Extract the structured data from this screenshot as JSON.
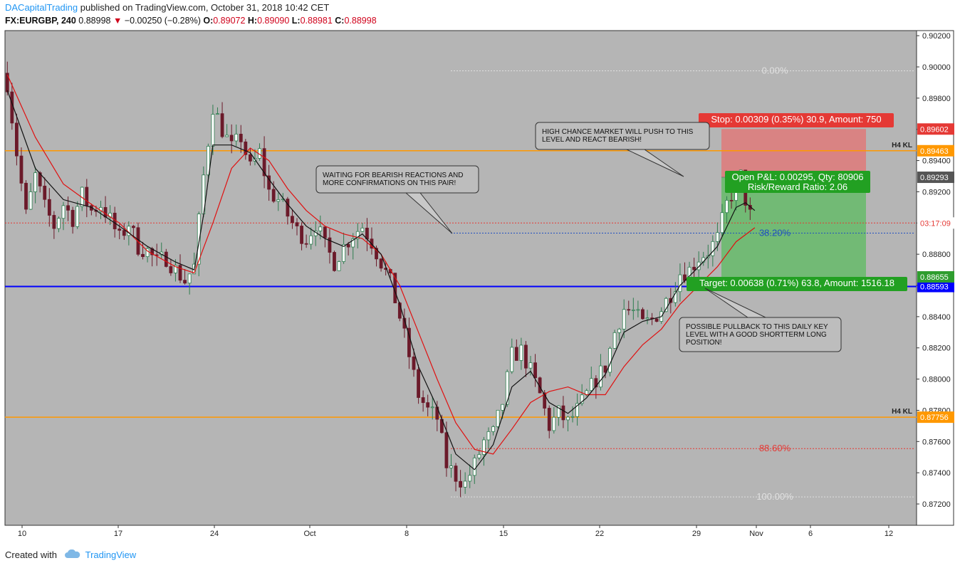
{
  "header": {
    "author": "DACapitalTrading",
    "published": " published on TradingView.com, October 31, 2018 10:42 CET",
    "symbol": "FX:EURGBP, 240",
    "last": "0.88998",
    "change_arrow": "▼",
    "change": "−0.00250 (−0.28%)",
    "o_label": "O:",
    "o": "0.89072",
    "h_label": "H:",
    "h": "0.89090",
    "l_label": "L:",
    "l": "0.88981",
    "c_label": "C:",
    "c": "0.88998"
  },
  "footer": {
    "created": "Created with",
    "logo": "TradingView",
    "logo_icon": "tradingview-cloud-icon"
  },
  "colors": {
    "background": "#b5b5b5",
    "up_candle": "#2e7d50",
    "down_candle": "#6b1a2a",
    "ema_fast": "#111111",
    "ema_slow": "#e01010",
    "orange_level": "#ff9800",
    "blue_level": "#0000ff",
    "stop_zone": "#e57373",
    "target_zone": "#66bb6a"
  },
  "chart_data": {
    "type": "candlestick",
    "symbol": "FX:EURGBP",
    "timeframe": "240",
    "ylim": [
      0.871,
      0.903
    ],
    "y_ticks": [
      "0.90200",
      "0.90000",
      "0.89800",
      "0.89600",
      "0.89400",
      "0.89200",
      "0.89000",
      "0.88800",
      "0.88600",
      "0.88400",
      "0.88200",
      "0.88000",
      "0.87800",
      "0.87600",
      "0.87400",
      "0.87200"
    ],
    "x_ticks": [
      "10",
      "17",
      "24",
      "Oct",
      "8",
      "15",
      "22",
      "29",
      "Nov",
      "6",
      "12"
    ],
    "close_path": [
      [
        0,
        0.899
      ],
      [
        2,
        0.8945
      ],
      [
        4,
        0.8905
      ],
      [
        6,
        0.893
      ],
      [
        8,
        0.891
      ],
      [
        10,
        0.8898
      ],
      [
        12,
        0.8912
      ],
      [
        14,
        0.8903
      ],
      [
        16,
        0.8918
      ],
      [
        18,
        0.8908
      ],
      [
        20,
        0.8912
      ],
      [
        22,
        0.8902
      ],
      [
        24,
        0.889
      ],
      [
        26,
        0.89
      ],
      [
        28,
        0.8885
      ],
      [
        30,
        0.8882
      ],
      [
        32,
        0.8875
      ],
      [
        34,
        0.8878
      ],
      [
        36,
        0.887
      ],
      [
        38,
        0.8863
      ],
      [
        40,
        0.8872
      ],
      [
        42,
        0.893
      ],
      [
        44,
        0.8975
      ],
      [
        46,
        0.896
      ],
      [
        48,
        0.8948
      ],
      [
        50,
        0.8955
      ],
      [
        52,
        0.8935
      ],
      [
        54,
        0.8945
      ],
      [
        56,
        0.892
      ],
      [
        58,
        0.8915
      ],
      [
        60,
        0.8905
      ],
      [
        62,
        0.8895
      ],
      [
        64,
        0.889
      ],
      [
        66,
        0.89
      ],
      [
        68,
        0.8885
      ],
      [
        70,
        0.8875
      ],
      [
        72,
        0.8885
      ],
      [
        74,
        0.8893
      ],
      [
        76,
        0.8898
      ],
      [
        78,
        0.8888
      ],
      [
        80,
        0.8875
      ],
      [
        82,
        0.8862
      ],
      [
        84,
        0.884
      ],
      [
        86,
        0.8815
      ],
      [
        88,
        0.879
      ],
      [
        90,
        0.878
      ],
      [
        92,
        0.8775
      ],
      [
        94,
        0.8745
      ],
      [
        96,
        0.8738
      ],
      [
        98,
        0.8733
      ],
      [
        100,
        0.8745
      ],
      [
        102,
        0.876
      ],
      [
        104,
        0.8765
      ],
      [
        106,
        0.8785
      ],
      [
        108,
        0.8815
      ],
      [
        110,
        0.8818
      ],
      [
        112,
        0.8805
      ],
      [
        114,
        0.879
      ],
      [
        116,
        0.877
      ],
      [
        118,
        0.8778
      ],
      [
        120,
        0.8772
      ],
      [
        122,
        0.878
      ],
      [
        124,
        0.879
      ],
      [
        126,
        0.88
      ],
      [
        128,
        0.8808
      ],
      [
        130,
        0.883
      ],
      [
        132,
        0.8845
      ],
      [
        134,
        0.8843
      ],
      [
        136,
        0.8835
      ],
      [
        138,
        0.8838
      ],
      [
        140,
        0.8845
      ],
      [
        142,
        0.8855
      ],
      [
        144,
        0.8868
      ],
      [
        146,
        0.887
      ],
      [
        148,
        0.8878
      ],
      [
        150,
        0.8882
      ],
      [
        152,
        0.889
      ],
      [
        154,
        0.8912
      ],
      [
        156,
        0.8925
      ],
      [
        157,
        0.893
      ],
      [
        158,
        0.8915
      ],
      [
        159,
        0.8905
      ],
      [
        160,
        0.89
      ]
    ],
    "ema_fast_path": [
      [
        0,
        0.8985
      ],
      [
        6,
        0.8935
      ],
      [
        12,
        0.8915
      ],
      [
        18,
        0.891
      ],
      [
        24,
        0.8898
      ],
      [
        30,
        0.8885
      ],
      [
        36,
        0.8875
      ],
      [
        40,
        0.887
      ],
      [
        42,
        0.8905
      ],
      [
        44,
        0.895
      ],
      [
        48,
        0.895
      ],
      [
        52,
        0.8945
      ],
      [
        56,
        0.8928
      ],
      [
        60,
        0.8912
      ],
      [
        64,
        0.8898
      ],
      [
        68,
        0.889
      ],
      [
        72,
        0.8885
      ],
      [
        76,
        0.8893
      ],
      [
        80,
        0.888
      ],
      [
        84,
        0.8848
      ],
      [
        88,
        0.8808
      ],
      [
        92,
        0.8782
      ],
      [
        96,
        0.8752
      ],
      [
        100,
        0.8742
      ],
      [
        104,
        0.8758
      ],
      [
        108,
        0.8795
      ],
      [
        112,
        0.8805
      ],
      [
        116,
        0.8785
      ],
      [
        120,
        0.8778
      ],
      [
        124,
        0.8788
      ],
      [
        128,
        0.8803
      ],
      [
        132,
        0.883
      ],
      [
        136,
        0.8837
      ],
      [
        140,
        0.884
      ],
      [
        144,
        0.886
      ],
      [
        148,
        0.8872
      ],
      [
        152,
        0.8885
      ],
      [
        156,
        0.891
      ],
      [
        158,
        0.8913
      ],
      [
        160,
        0.8908
      ]
    ],
    "ema_slow_path": [
      [
        0,
        0.8995
      ],
      [
        6,
        0.8955
      ],
      [
        12,
        0.8925
      ],
      [
        18,
        0.8912
      ],
      [
        24,
        0.89
      ],
      [
        30,
        0.8882
      ],
      [
        36,
        0.8872
      ],
      [
        40,
        0.8868
      ],
      [
        44,
        0.89
      ],
      [
        48,
        0.8935
      ],
      [
        52,
        0.8948
      ],
      [
        56,
        0.894
      ],
      [
        60,
        0.8922
      ],
      [
        64,
        0.8908
      ],
      [
        68,
        0.8898
      ],
      [
        72,
        0.8893
      ],
      [
        76,
        0.889
      ],
      [
        80,
        0.888
      ],
      [
        84,
        0.886
      ],
      [
        88,
        0.883
      ],
      [
        92,
        0.88
      ],
      [
        96,
        0.8772
      ],
      [
        100,
        0.8755
      ],
      [
        104,
        0.8752
      ],
      [
        108,
        0.8768
      ],
      [
        112,
        0.8785
      ],
      [
        116,
        0.8792
      ],
      [
        120,
        0.8795
      ],
      [
        124,
        0.879
      ],
      [
        128,
        0.879
      ],
      [
        132,
        0.8808
      ],
      [
        136,
        0.8822
      ],
      [
        140,
        0.8832
      ],
      [
        144,
        0.8848
      ],
      [
        148,
        0.886
      ],
      [
        152,
        0.8872
      ],
      [
        156,
        0.8888
      ],
      [
        160,
        0.8897
      ]
    ],
    "levels": [
      {
        "price": 0.89463,
        "label": "H4 KL",
        "tag": "0.89463",
        "color": "#ff9800"
      },
      {
        "price": 0.87756,
        "label": "H4 KL",
        "tag": "0.87756",
        "color": "#ff9800"
      },
      {
        "price": 0.88593,
        "label": "",
        "tag": "0.88593",
        "color": "#0000ff"
      }
    ],
    "price_tags": [
      {
        "price": 0.89602,
        "text": "0.89602",
        "bg": "#e53935"
      },
      {
        "price": 0.89293,
        "text": "0.89293",
        "bg": "#555555"
      },
      {
        "price": 0.89,
        "text": "03:17:09",
        "bg": "#ffffff",
        "fg": "#e53935"
      },
      {
        "price": 0.88655,
        "text": "0.88655",
        "bg": "#2e9d2e"
      }
    ],
    "fib": [
      {
        "price": 0.89975,
        "label": "0.00%",
        "color": "#e0e0e0"
      },
      {
        "price": 0.88935,
        "label": "38.20%",
        "color": "#2050c0"
      },
      {
        "price": 0.87555,
        "label": "88.60%",
        "color": "#e53935"
      },
      {
        "price": 0.87245,
        "label": "100.00%",
        "color": "#e0e0e0"
      }
    ],
    "position": {
      "stop_price": 0.89602,
      "entry_price": 0.89293,
      "target_price": 0.88655,
      "stop_label": "Stop: 0.00309 (0.35%) 30.9, Amount: 750",
      "pnl_label": "Open P&L: 0.00295, Qty: 80906",
      "rr_label": "Risk/Reward Ratio: 2.06",
      "target_label": "Target: 0.00638 (0.71%) 63.8, Amount: 1516.18"
    },
    "annotations": [
      {
        "text": [
          "HIGH CHANCE MARKET WILL PUSH TO THIS",
          "LEVEL AND REACT BEARISH!"
        ]
      },
      {
        "text": [
          "WAITING FOR BEARISH REACTIONS AND",
          "MORE CONFIRMATIONS ON THIS PAIR!"
        ]
      },
      {
        "text": [
          "POSSIBLE PULLBACK TO THIS DAILY KEY",
          "LEVEL WITH A GOOD SHORTTERM LONG",
          "POSITION!"
        ]
      }
    ]
  }
}
